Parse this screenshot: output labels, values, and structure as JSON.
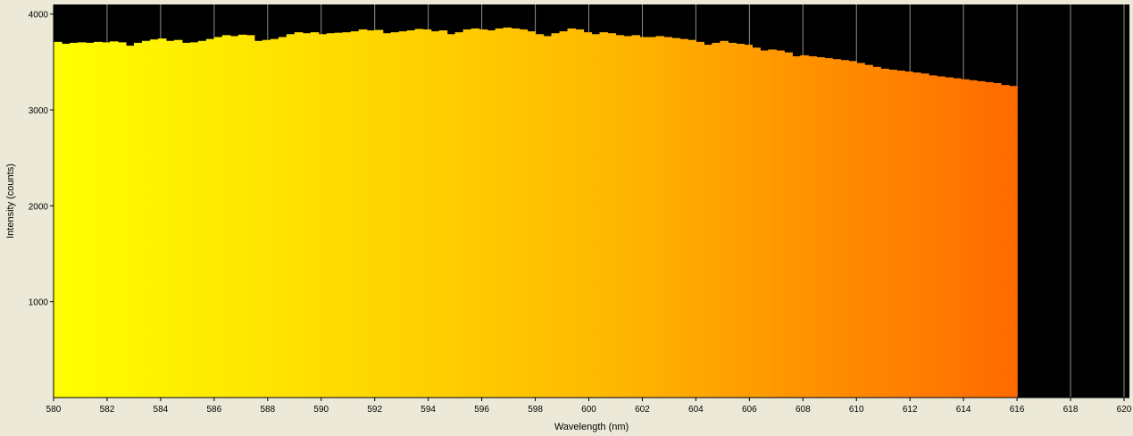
{
  "chart_data": {
    "type": "bar",
    "title": "",
    "xlabel": "Wavelength (nm)",
    "ylabel": "Intensity (counts)",
    "xlim": [
      580,
      620.2
    ],
    "ylim": [
      0,
      4100
    ],
    "x_ticks": [
      "580",
      "582",
      "584",
      "586",
      "588",
      "590",
      "592",
      "594",
      "596",
      "598",
      "600",
      "602",
      "604",
      "606",
      "608",
      "610",
      "612",
      "614",
      "616",
      "618",
      "620"
    ],
    "y_ticks": [
      "1000",
      "2000",
      "3000",
      "4000"
    ],
    "grid": true,
    "bin_start": 580,
    "bin_width": 0.3,
    "values": [
      3710,
      3690,
      3700,
      3705,
      3700,
      3710,
      3705,
      3715,
      3705,
      3670,
      3700,
      3720,
      3735,
      3745,
      3720,
      3730,
      3700,
      3705,
      3720,
      3740,
      3760,
      3780,
      3770,
      3785,
      3780,
      3720,
      3730,
      3740,
      3760,
      3790,
      3810,
      3800,
      3810,
      3790,
      3800,
      3805,
      3810,
      3820,
      3840,
      3830,
      3835,
      3800,
      3810,
      3820,
      3830,
      3845,
      3840,
      3820,
      3830,
      3790,
      3810,
      3840,
      3850,
      3840,
      3830,
      3850,
      3860,
      3850,
      3840,
      3820,
      3790,
      3770,
      3800,
      3820,
      3850,
      3840,
      3810,
      3790,
      3810,
      3800,
      3780,
      3770,
      3780,
      3760,
      3760,
      3770,
      3760,
      3750,
      3740,
      3730,
      3710,
      3680,
      3700,
      3720,
      3700,
      3690,
      3680,
      3650,
      3620,
      3630,
      3620,
      3600,
      3560,
      3570,
      3560,
      3550,
      3540,
      3530,
      3520,
      3510,
      3490,
      3470,
      3450,
      3430,
      3420,
      3410,
      3400,
      3390,
      3380,
      3360,
      3350,
      3340,
      3330,
      3320,
      3310,
      3300,
      3290,
      3280,
      3260,
      3250
    ],
    "colors": {
      "plot_background": "#000000",
      "gridline": "#909090",
      "page_background": "#ece9d8",
      "gradient_start": "#ffff00",
      "gradient_mid": "#ffbb00",
      "gradient_end": "#ff5500"
    }
  }
}
